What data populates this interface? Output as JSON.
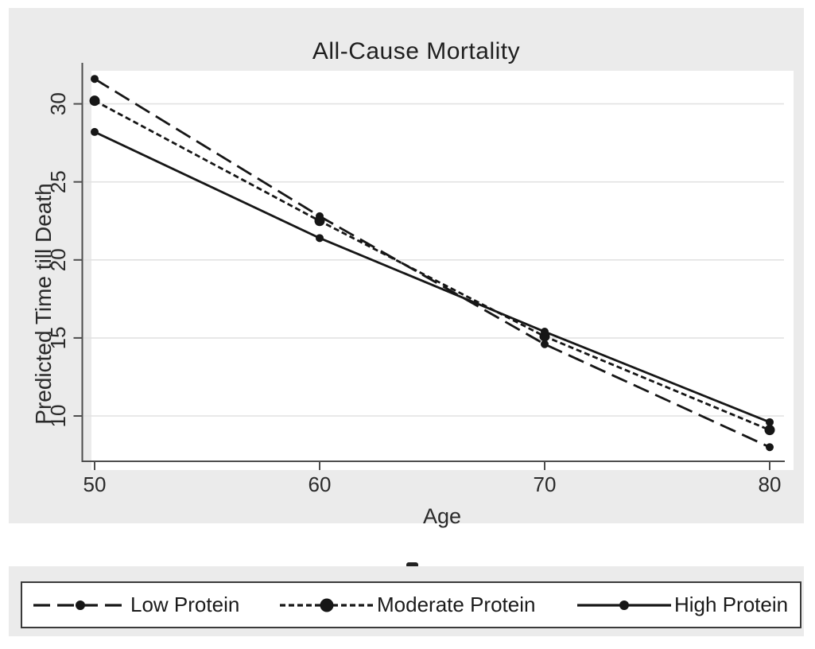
{
  "chart_data": {
    "type": "line",
    "title": "All-Cause Mortality",
    "xlabel": "Age",
    "ylabel": "Predicted Time till Death",
    "x": [
      50,
      60,
      70,
      80
    ],
    "xticks": [
      "50",
      "60",
      "70",
      "80"
    ],
    "yticks": [
      "10",
      "15",
      "20",
      "25",
      "30"
    ],
    "ytick_values": [
      10,
      15,
      20,
      25,
      30
    ],
    "xlim": [
      49.5,
      80.7
    ],
    "ylim": [
      7.4,
      32.6
    ],
    "grid": "horizontal-only",
    "legend_position": "bottom-box",
    "line_color": "#161616",
    "series": [
      {
        "name": "Low Protein",
        "line_style": "long-dash",
        "values": [
          31.6,
          22.8,
          14.6,
          8.0
        ]
      },
      {
        "name": "Moderate Protein",
        "line_style": "short-dash",
        "values": [
          30.2,
          22.5,
          15.1,
          9.1
        ]
      },
      {
        "name": "High Protein",
        "line_style": "solid",
        "values": [
          28.2,
          21.4,
          15.4,
          9.6
        ]
      }
    ]
  },
  "legend": {
    "items": [
      {
        "label": "Low Protein"
      },
      {
        "label": "Moderate Protein"
      },
      {
        "label": "High Protein"
      }
    ]
  },
  "colors": {
    "panel_background": "#ebebeb",
    "plot_background": "#ffffff",
    "gridline": "#e2e2e2",
    "axis": "#4d4d4d",
    "text": "#2a2a2a",
    "series": "#161616"
  }
}
